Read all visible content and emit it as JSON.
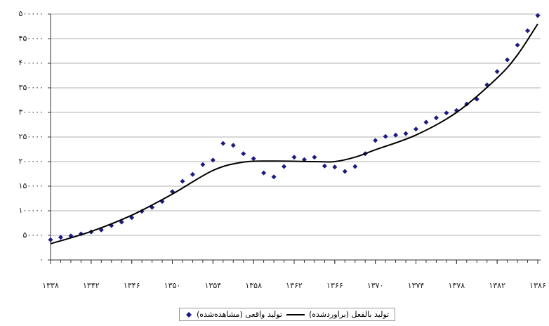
{
  "chart_data": {
    "type": "scatter",
    "xlim": [
      1338,
      1386
    ],
    "xticks": [
      {
        "value": 1338,
        "label": "۱۳۳۸"
      },
      {
        "value": 1342,
        "label": "۱۳۴۲"
      },
      {
        "value": 1346,
        "label": "۱۳۴۶"
      },
      {
        "value": 1350,
        "label": "۱۳۵۰"
      },
      {
        "value": 1354,
        "label": "۱۳۵۴"
      },
      {
        "value": 1358,
        "label": "۱۳۵۸"
      },
      {
        "value": 1362,
        "label": "۱۳۶۲"
      },
      {
        "value": 1366,
        "label": "۱۳۶۶"
      },
      {
        "value": 1370,
        "label": "۱۳۷۰"
      },
      {
        "value": 1374,
        "label": "۱۳۷۴"
      },
      {
        "value": 1378,
        "label": "۱۳۷۸"
      },
      {
        "value": 1382,
        "label": "۱۳۸۲"
      },
      {
        "value": 1386,
        "label": "۱۳۸۶"
      }
    ],
    "ylim": [
      0,
      500000
    ],
    "yticks": [
      {
        "value": 0,
        "label": "۰"
      },
      {
        "value": 50000,
        "label": "۵۰۰۰۰"
      },
      {
        "value": 100000,
        "label": "۱۰۰۰۰۰"
      },
      {
        "value": 150000,
        "label": "۱۵۰۰۰۰"
      },
      {
        "value": 200000,
        "label": "۲۰۰۰۰۰"
      },
      {
        "value": 250000,
        "label": "۲۵۰۰۰۰"
      },
      {
        "value": 300000,
        "label": "۳۰۰۰۰۰"
      },
      {
        "value": 350000,
        "label": "۳۵۰۰۰۰"
      },
      {
        "value": 400000,
        "label": "۴۰۰۰۰۰"
      },
      {
        "value": 450000,
        "label": "۴۵۰۰۰۰"
      },
      {
        "value": 500000,
        "label": "۵۰۰۰۰۰"
      }
    ],
    "grid": true,
    "legend": "bottom",
    "series": [
      {
        "name": "تولید واقعی (مشاهده‌شده)",
        "type": "scatter",
        "color": "#1c1c80",
        "x": [
          1338,
          1339,
          1340,
          1341,
          1342,
          1343,
          1344,
          1345,
          1346,
          1347,
          1348,
          1349,
          1350,
          1351,
          1352,
          1353,
          1354,
          1355,
          1356,
          1357,
          1358,
          1359,
          1360,
          1361,
          1362,
          1363,
          1364,
          1365,
          1366,
          1367,
          1368,
          1369,
          1370,
          1371,
          1372,
          1373,
          1374,
          1375,
          1376,
          1377,
          1378,
          1379,
          1380,
          1381,
          1382,
          1383,
          1384,
          1385,
          1386
        ],
        "values": [
          41000,
          46000,
          49000,
          53000,
          57000,
          61000,
          70000,
          77000,
          86000,
          99000,
          107000,
          119000,
          139000,
          160000,
          174000,
          194000,
          203000,
          237000,
          233000,
          216000,
          206000,
          177000,
          169000,
          190000,
          209000,
          204000,
          209000,
          191000,
          189000,
          180000,
          190000,
          216000,
          243000,
          251000,
          254000,
          257000,
          266000,
          280000,
          289000,
          299000,
          304000,
          317000,
          327000,
          356000,
          383000,
          407000,
          437000,
          466000,
          497000
        ]
      },
      {
        "name": "تولید بالفعل (براوردشده)",
        "type": "line",
        "color": "#000000",
        "x": [
          1338,
          1342,
          1346,
          1350,
          1354,
          1357,
          1360,
          1364,
          1366,
          1368,
          1370,
          1374,
          1378,
          1382,
          1384,
          1386
        ],
        "values": [
          33000,
          58000,
          91000,
          134000,
          182000,
          199000,
          201000,
          200000,
          200000,
          209000,
          224000,
          254000,
          300000,
          370000,
          417000,
          480000
        ]
      }
    ]
  }
}
